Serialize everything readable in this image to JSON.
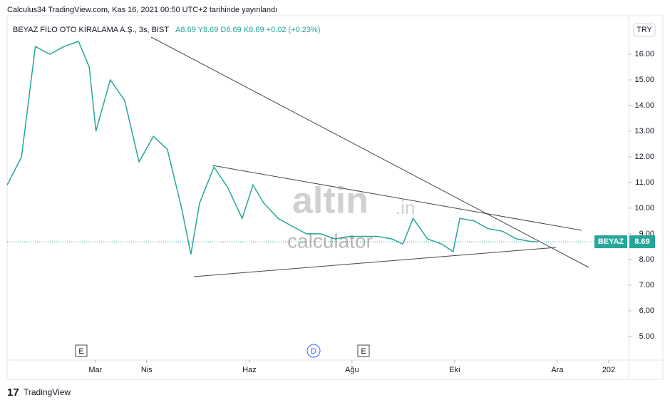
{
  "header": {
    "published": "Calculus34 TradingView.com, Kas 16, 2021 00:50 UTC+2 tarihinde yayınlandı",
    "symbol": "BEYAZ FİLO OTO KİRALAMA A.Ş., 3s, BIST",
    "ohlc": "A8.69 Y8.69 D8.69 K8.69 +0.02 (+0.23%)",
    "currency": "TRY"
  },
  "events": [
    "E",
    "D",
    "E"
  ],
  "watermark": {
    "brand": "altin",
    "domain": ".in",
    "sub": "calculator"
  },
  "footer": "TradingView",
  "chart_data": {
    "type": "line",
    "color": "#26a69a",
    "grid": false,
    "x": [
      0.28,
      0.56,
      0.83,
      1.11,
      1.39,
      1.67,
      1.88,
      2.01,
      2.29,
      2.57,
      2.85,
      3.13,
      3.4,
      3.68,
      3.86,
      4.03,
      4.31,
      4.58,
      4.86,
      5.07,
      5.28,
      5.56,
      5.83,
      6.11,
      6.39,
      6.67,
      6.94,
      7.22,
      7.5,
      7.78,
      7.99,
      8.19,
      8.47,
      8.75,
      8.97,
      9.1,
      9.38,
      9.65,
      9.93,
      10.21,
      10.49,
      10.63
    ],
    "values": [
      10.9,
      12.0,
      16.3,
      16.0,
      16.3,
      16.5,
      15.5,
      13.0,
      15.0,
      14.2,
      11.8,
      12.8,
      12.3,
      10.0,
      8.2,
      10.2,
      11.6,
      10.8,
      9.6,
      10.9,
      10.2,
      9.6,
      9.3,
      9.0,
      9.0,
      8.8,
      8.9,
      8.9,
      8.9,
      8.8,
      8.6,
      9.6,
      8.8,
      8.6,
      8.3,
      9.6,
      9.5,
      9.2,
      9.1,
      8.8,
      8.7,
      8.69
    ],
    "xlim": [
      0.28,
      12.39
    ],
    "xticks": [
      {
        "value": 2,
        "label": "Mar"
      },
      {
        "value": 3,
        "label": "Nis"
      },
      {
        "value": 5,
        "label": "Haz"
      },
      {
        "value": 7,
        "label": "Ağu"
      },
      {
        "value": 9,
        "label": "Eki"
      },
      {
        "value": 11,
        "label": "Ara"
      },
      {
        "value": 12,
        "label": "202"
      }
    ],
    "ylim": [
      4.08,
      17.5
    ],
    "yticks": [
      {
        "value": 5,
        "label": "5.00"
      },
      {
        "value": 6,
        "label": "6.00"
      },
      {
        "value": 7,
        "label": "7.00"
      },
      {
        "value": 8,
        "label": "8.00"
      },
      {
        "value": 9,
        "label": "9.00"
      },
      {
        "value": 10,
        "label": "10.00"
      },
      {
        "value": 11,
        "label": "11.00"
      },
      {
        "value": 12,
        "label": "12.00"
      },
      {
        "value": 13,
        "label": "13.00"
      },
      {
        "value": 14,
        "label": "14.00"
      },
      {
        "value": 15,
        "label": "15.00"
      },
      {
        "value": 16,
        "label": "16.00"
      }
    ],
    "last_tag": "BEYAZ",
    "last_price": 8.69
  }
}
